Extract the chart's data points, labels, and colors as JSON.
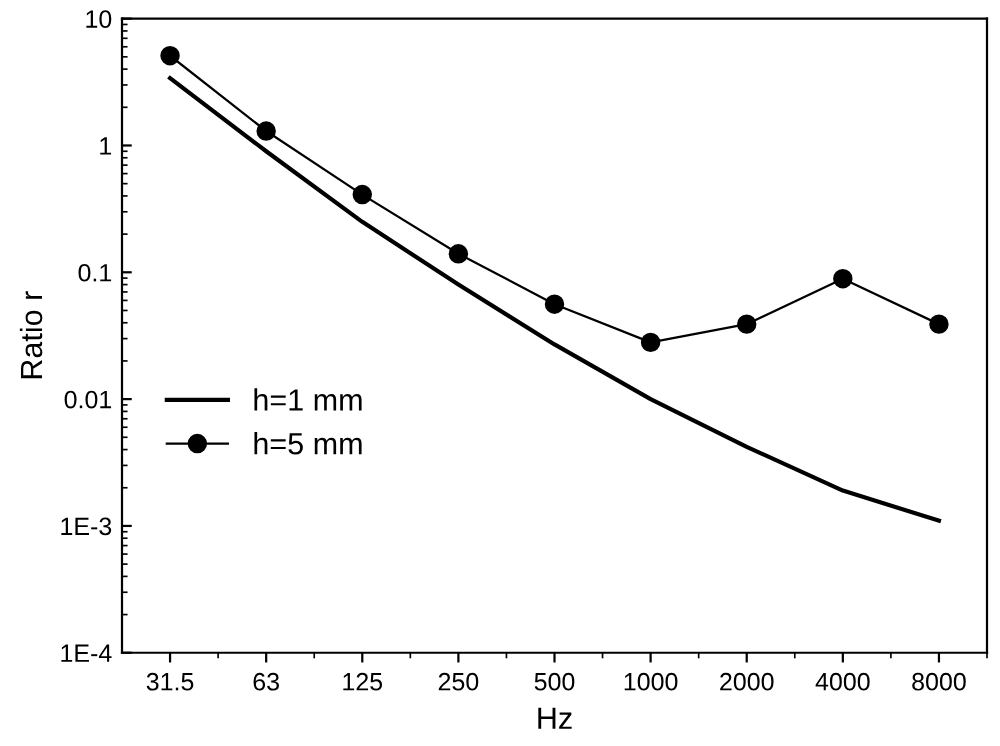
{
  "chart_data": {
    "type": "line",
    "xlabel": "Hz",
    "ylabel": "Ratio r",
    "log": "y",
    "categories": [
      "31.5",
      "63",
      "125",
      "250",
      "500",
      "1000",
      "2000",
      "4000",
      "8000"
    ],
    "series": [
      {
        "name": "h=1 mm",
        "color": "#000000",
        "marker": "none",
        "values": [
          3.4,
          0.9,
          0.25,
          0.08,
          0.027,
          0.01,
          0.0042,
          0.0019,
          0.0011
        ]
      },
      {
        "name": "h=5 mm",
        "color": "#000000",
        "marker": "circle",
        "values": [
          5.1,
          1.3,
          0.41,
          0.14,
          0.056,
          0.028,
          0.039,
          0.089,
          0.039
        ]
      }
    ],
    "ylim": [
      0.0001,
      10
    ],
    "yticks": [
      {
        "value": 0.0001,
        "label": "1E-4"
      },
      {
        "value": 0.001,
        "label": "1E-3"
      },
      0.01,
      0.1,
      1,
      10
    ],
    "grid": false,
    "legend": "left"
  }
}
